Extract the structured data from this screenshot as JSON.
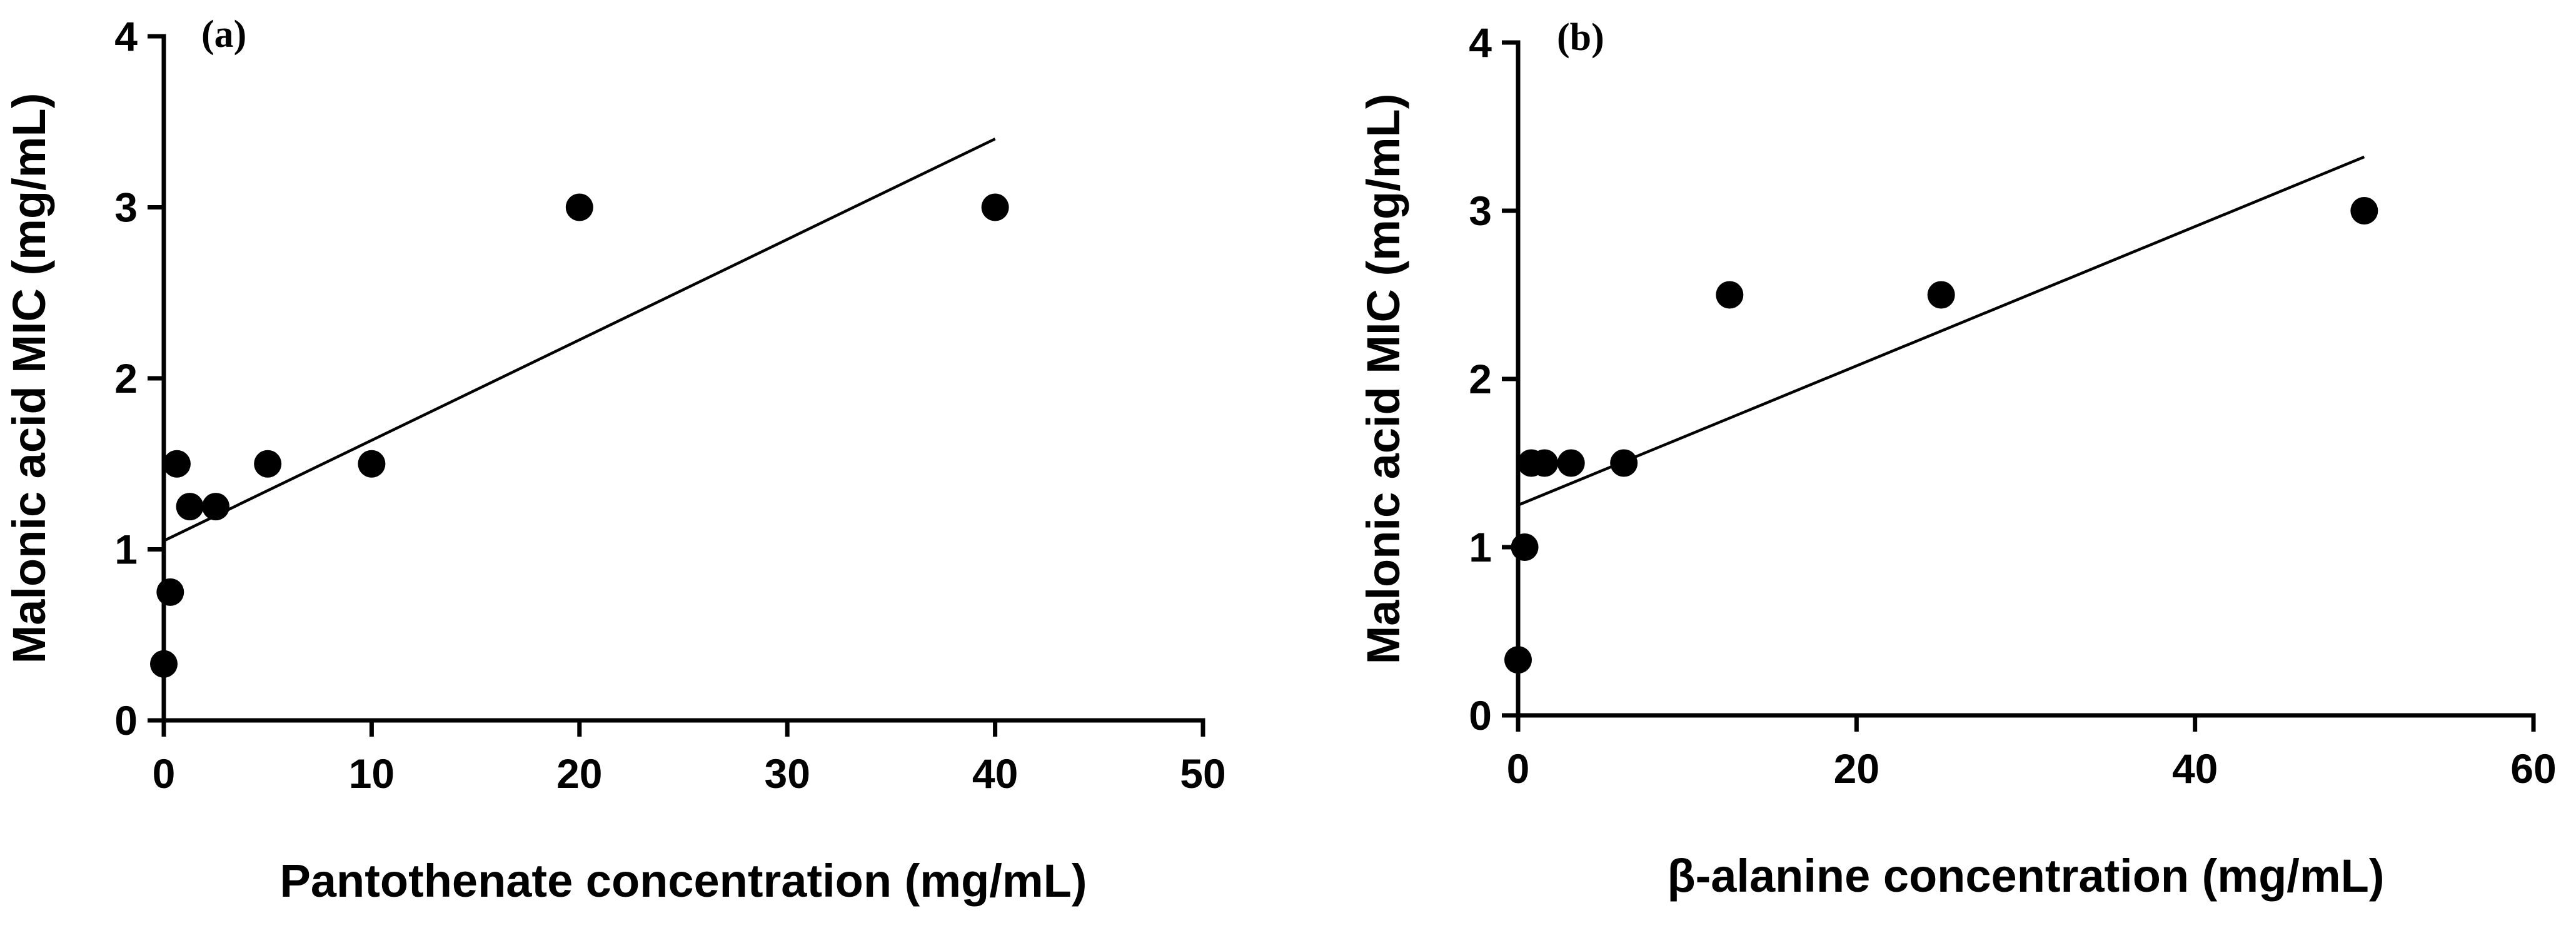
{
  "chart_data": [
    {
      "type": "scatter",
      "panel_label": "(a)",
      "xlabel": "Pantothenate concentration (mg/mL)",
      "ylabel": "Malonic acid MIC (mg/mL)",
      "xlim": [
        0,
        50
      ],
      "ylim": [
        0,
        4
      ],
      "xticks": [
        "0",
        "10",
        "20",
        "30",
        "40",
        "50"
      ],
      "yticks": [
        "0",
        "1",
        "2",
        "3",
        "4"
      ],
      "points": [
        {
          "x": 0,
          "y": 0.33
        },
        {
          "x": 0.31,
          "y": 0.75
        },
        {
          "x": 0.63,
          "y": 1.5
        },
        {
          "x": 1.25,
          "y": 1.25
        },
        {
          "x": 2.5,
          "y": 1.25
        },
        {
          "x": 5,
          "y": 1.5
        },
        {
          "x": 10,
          "y": 1.5
        },
        {
          "x": 20,
          "y": 3
        },
        {
          "x": 40,
          "y": 3
        }
      ],
      "fit_line": {
        "x": [
          0,
          40
        ],
        "y": [
          1.05,
          3.4
        ]
      }
    },
    {
      "type": "scatter",
      "panel_label": "(b)",
      "xlabel": "β-alanine concentration (mg/mL)",
      "ylabel": "Malonic acid MIC (mg/mL)",
      "xlim": [
        0,
        60
      ],
      "ylim": [
        0,
        4
      ],
      "xticks": [
        "0",
        "20",
        "40",
        "60"
      ],
      "yticks": [
        "0",
        "1",
        "2",
        "3",
        "4"
      ],
      "points": [
        {
          "x": 0,
          "y": 0.33
        },
        {
          "x": 0.39,
          "y": 1.0
        },
        {
          "x": 0.78,
          "y": 1.5
        },
        {
          "x": 1.56,
          "y": 1.5
        },
        {
          "x": 3.13,
          "y": 1.5
        },
        {
          "x": 6.25,
          "y": 1.5
        },
        {
          "x": 12.5,
          "y": 2.5
        },
        {
          "x": 25,
          "y": 2.5
        },
        {
          "x": 50,
          "y": 3
        }
      ],
      "fit_line": {
        "x": [
          0,
          50
        ],
        "y": [
          1.25,
          3.32
        ]
      }
    }
  ]
}
